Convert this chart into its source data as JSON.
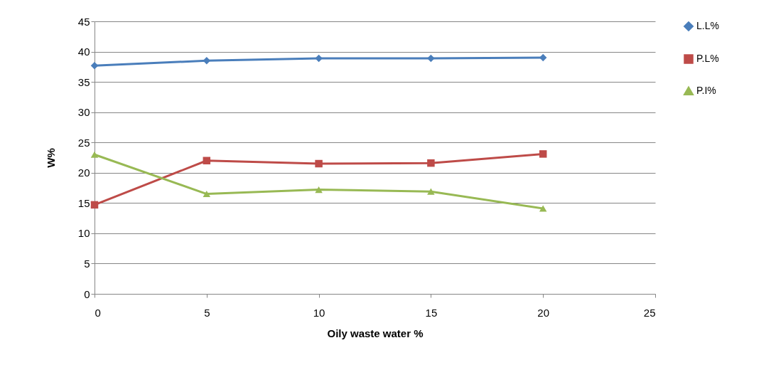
{
  "chart_data": {
    "type": "line",
    "xlabel": "Oily waste water  %",
    "ylabel": "W%",
    "x": [
      0,
      5,
      10,
      15,
      20
    ],
    "series": [
      {
        "name": "L.L%",
        "color": "#4a7ebb",
        "marker": "diamond",
        "values": [
          37.7,
          38.5,
          38.9,
          38.9,
          39.0
        ]
      },
      {
        "name": "P.L%",
        "color": "#be4b48",
        "marker": "square",
        "values": [
          14.7,
          22.0,
          21.5,
          21.6,
          23.1
        ]
      },
      {
        "name": "P.I%",
        "color": "#98b954",
        "marker": "triangle",
        "values": [
          23.0,
          16.5,
          17.2,
          16.9,
          14.1
        ]
      }
    ],
    "xlim": [
      0,
      25
    ],
    "xticks": [
      0,
      5,
      10,
      15,
      20,
      25
    ],
    "ylim": [
      0,
      45
    ],
    "yticks": [
      0,
      5,
      10,
      15,
      20,
      25,
      30,
      35,
      40,
      45
    ],
    "grid": "y",
    "legend": "right",
    "line_style": "solid"
  }
}
